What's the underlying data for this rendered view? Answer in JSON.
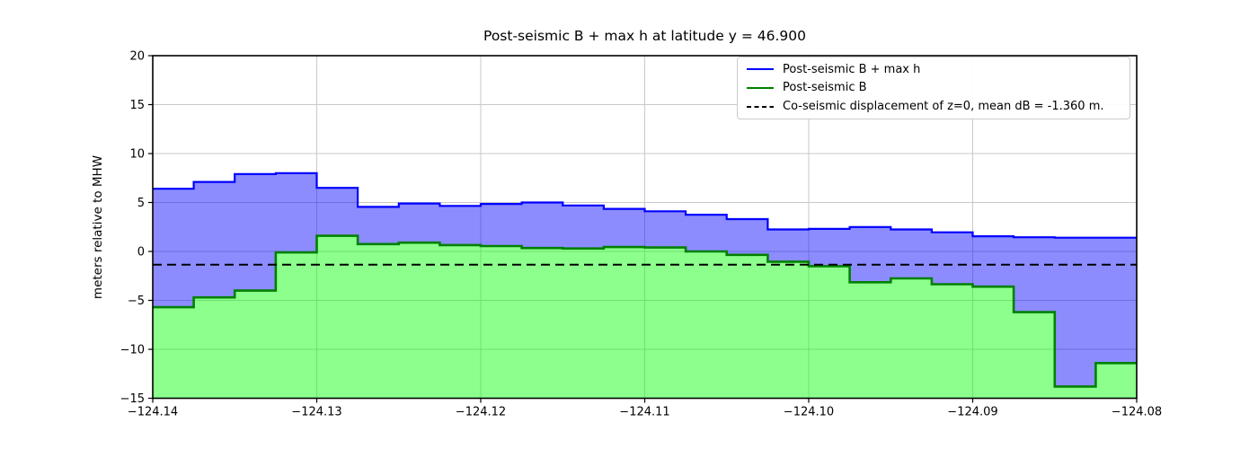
{
  "chart_data": {
    "type": "area",
    "subtype": "filled-step-plot",
    "title": "Post-seismic B + max h at latitude y = 46.900",
    "xlabel": "",
    "ylabel": "meters relative to MHW",
    "xlim": [
      -124.14,
      -124.08
    ],
    "ylim": [
      -15,
      20
    ],
    "grid": true,
    "grid_color": "#c9c9c9",
    "axes_color": "#000000",
    "background_color": "#ffffff",
    "legend_position": "upper right",
    "x_ticks": [
      -124.14,
      -124.13,
      -124.12,
      -124.11,
      -124.1,
      -124.09,
      -124.08
    ],
    "x_tick_labels": [
      "−124.14",
      "−124.13",
      "−124.12",
      "−124.11",
      "−124.10",
      "−124.09",
      "−124.08"
    ],
    "y_ticks": [
      20,
      15,
      10,
      5,
      0,
      -5,
      -10,
      -15
    ],
    "y_tick_labels": [
      "20",
      "15",
      "10",
      "5",
      "0",
      "−5",
      "−10",
      "−15"
    ],
    "x_step_edges": [
      -124.14,
      -124.1375,
      -124.135,
      -124.1325,
      -124.13,
      -124.1275,
      -124.125,
      -124.1225,
      -124.12,
      -124.1175,
      -124.115,
      -124.1125,
      -124.11,
      -124.1075,
      -124.105,
      -124.1025,
      -124.1,
      -124.0975,
      -124.095,
      -124.0925,
      -124.09,
      -124.0875,
      -124.085,
      -124.0825,
      -124.08
    ],
    "series": [
      {
        "name": "Post-seismic B + max h",
        "line_color": "#0000ff",
        "fill_color": "rgba(0,0,255,0.45)",
        "values": [
          6.4,
          7.1,
          7.9,
          8.0,
          6.5,
          4.55,
          4.9,
          4.65,
          4.85,
          5.0,
          4.7,
          4.35,
          4.1,
          3.75,
          3.3,
          2.25,
          2.3,
          2.5,
          2.25,
          1.95,
          1.55,
          1.45,
          1.4,
          1.4
        ]
      },
      {
        "name": "Post-seismic B",
        "line_color": "#008000",
        "fill_color": "rgba(0,255,0,0.45)",
        "values": [
          -5.7,
          -4.7,
          -4.0,
          -0.1,
          1.6,
          0.75,
          0.9,
          0.65,
          0.55,
          0.35,
          0.3,
          0.45,
          0.4,
          0.0,
          -0.35,
          -1.05,
          -1.5,
          -3.15,
          -2.75,
          -3.35,
          -3.6,
          -6.2,
          -13.8,
          -11.4
        ]
      }
    ],
    "hline": {
      "name": "Co-seismic displacement of z=0, mean dB = -1.360 m.",
      "value": -1.36,
      "color": "#000000",
      "style": "dashed"
    }
  }
}
